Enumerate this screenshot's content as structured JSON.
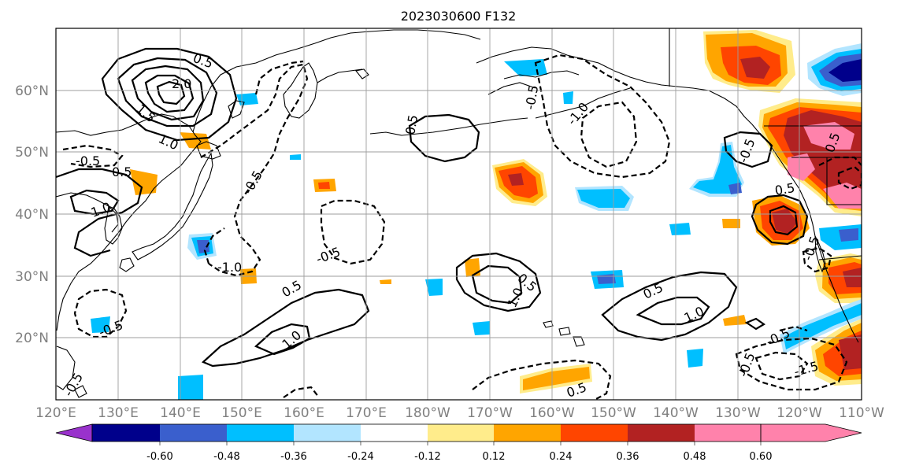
{
  "title": "2023030600 F132",
  "map": {
    "lat_labels": [
      "60°N",
      "50°N",
      "40°N",
      "30°N",
      "20°N"
    ],
    "lon_labels": [
      "120°E",
      "130°E",
      "140°E",
      "150°E",
      "160°E",
      "170°E",
      "180°W",
      "170°W",
      "160°W",
      "150°W",
      "140°W",
      "130°W",
      "120°W",
      "110°W"
    ],
    "contour_labels": [
      "0.5",
      "2.0",
      "1.5",
      "1.0",
      "-0.5",
      "0.5",
      "1.0",
      "-0.5",
      "-1.0",
      "-0.5",
      "-0.5",
      "-0.5",
      "0.5",
      "0.5",
      "1.0",
      "0.5",
      "1.0",
      "0.5",
      "1.0",
      "-1.0",
      "0.5",
      "-0.5",
      "0.5",
      "-0.5",
      "-1.5",
      "0.5",
      "-0.5",
      "-0.5",
      "-0.5"
    ]
  },
  "colorbar": {
    "tick_labels": [
      "-0.60",
      "-0.48",
      "-0.36",
      "-0.24",
      "-0.12",
      "0.12",
      "0.24",
      "0.36",
      "0.48",
      "0.60"
    ],
    "colors": [
      "#9932cc",
      "#00008b",
      "#3a5fcd",
      "#00bfff",
      "#b2e5ff",
      "#ffffff",
      "#ffec8b",
      "#ffa500",
      "#ff4500",
      "#b22222",
      "#ff82ab"
    ]
  }
}
